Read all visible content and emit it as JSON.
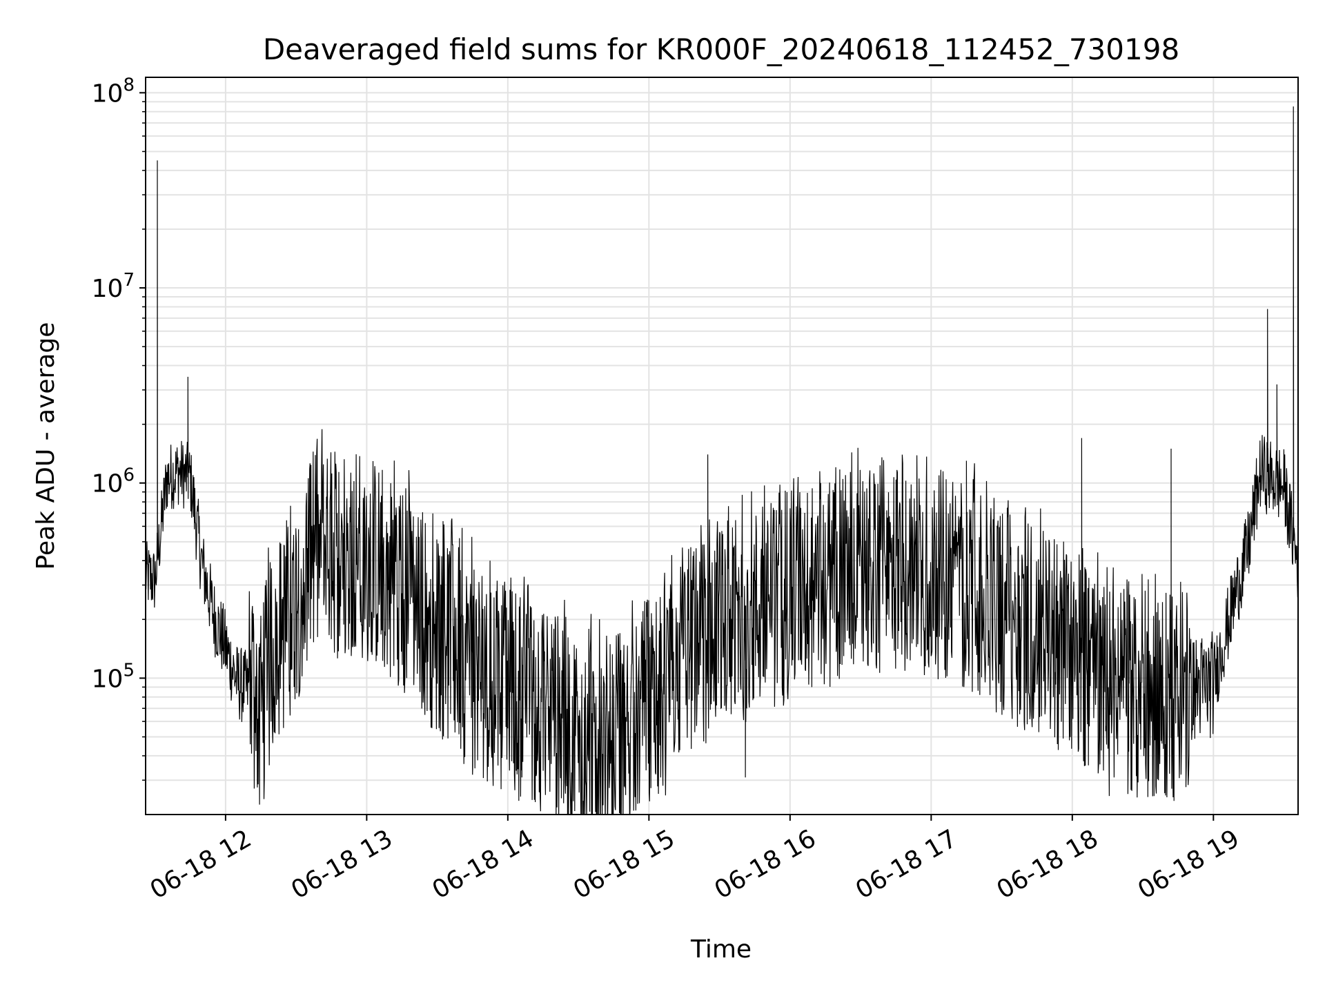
{
  "chart_data": {
    "type": "line",
    "title": "Deaveraged field sums for KR000F_20240618_112452_730198",
    "xlabel": "Time",
    "ylabel": "Peak ADU - average",
    "yscale": "log",
    "ylim": [
      20000,
      120000000
    ],
    "xlim": [
      "2024-06-18 11:26",
      "2024-06-18 19:36"
    ],
    "grid": true,
    "line_color": "#000000",
    "x_ticks": [
      {
        "time": "2024-06-18 12:00",
        "label": "06-18 12"
      },
      {
        "time": "2024-06-18 13:00",
        "label": "06-18 13"
      },
      {
        "time": "2024-06-18 14:00",
        "label": "06-18 14"
      },
      {
        "time": "2024-06-18 15:00",
        "label": "06-18 15"
      },
      {
        "time": "2024-06-18 16:00",
        "label": "06-18 16"
      },
      {
        "time": "2024-06-18 17:00",
        "label": "06-18 17"
      },
      {
        "time": "2024-06-18 18:00",
        "label": "06-18 18"
      },
      {
        "time": "2024-06-18 19:00",
        "label": "06-18 19"
      }
    ],
    "y_ticks": [
      {
        "value": 100000,
        "base": "10",
        "exp": "5"
      },
      {
        "value": 1000000,
        "base": "10",
        "exp": "6"
      },
      {
        "value": 10000000,
        "base": "10",
        "exp": "7"
      },
      {
        "value": 100000000,
        "base": "10",
        "exp": "8"
      }
    ],
    "series": [
      {
        "x": [
          "2024-06-18 11:26",
          "2024-06-18 11:30",
          "2024-06-18 11:35",
          "2024-06-18 11:40",
          "2024-06-18 11:45",
          "2024-06-18 11:50",
          "2024-06-18 11:55",
          "2024-06-18 12:00",
          "2024-06-18 12:05",
          "2024-06-18 12:10",
          "2024-06-18 12:15",
          "2024-06-18 12:20",
          "2024-06-18 12:30",
          "2024-06-18 12:40",
          "2024-06-18 12:50",
          "2024-06-18 13:00",
          "2024-06-18 13:10",
          "2024-06-18 13:20",
          "2024-06-18 13:30",
          "2024-06-18 13:40",
          "2024-06-18 13:50",
          "2024-06-18 14:00",
          "2024-06-18 14:15",
          "2024-06-18 14:30",
          "2024-06-18 14:45",
          "2024-06-18 15:00",
          "2024-06-18 15:15",
          "2024-06-18 15:30",
          "2024-06-18 15:45",
          "2024-06-18 16:00",
          "2024-06-18 16:15",
          "2024-06-18 16:30",
          "2024-06-18 16:45",
          "2024-06-18 17:00",
          "2024-06-18 17:15",
          "2024-06-18 17:30",
          "2024-06-18 17:45",
          "2024-06-18 18:00",
          "2024-06-18 18:15",
          "2024-06-18 18:30",
          "2024-06-18 18:45",
          "2024-06-18 19:00",
          "2024-06-18 19:10",
          "2024-06-18 19:15",
          "2024-06-18 19:20",
          "2024-06-18 19:25",
          "2024-06-18 19:30",
          "2024-06-18 19:36"
        ],
        "y": [
          350000,
          330000,
          1100000,
          1200000,
          1100000,
          400000,
          220000,
          150000,
          100000,
          90000,
          80000,
          150000,
          300000,
          500000,
          500000,
          450000,
          400000,
          300000,
          200000,
          150000,
          120000,
          100000,
          80000,
          60000,
          60000,
          70000,
          150000,
          200000,
          250000,
          300000,
          350000,
          400000,
          400000,
          400000,
          350000,
          250000,
          200000,
          150000,
          100000,
          90000,
          90000,
          100000,
          300000,
          500000,
          1200000,
          1100000,
          1000000,
          400000
        ],
        "spikes": [
          {
            "time": "2024-06-18 11:31",
            "value": 45000000
          },
          {
            "time": "2024-06-18 11:44",
            "value": 3500000
          },
          {
            "time": "2024-06-18 15:25",
            "value": 1400000
          },
          {
            "time": "2024-06-18 17:15",
            "value": 1300000
          },
          {
            "time": "2024-06-18 18:04",
            "value": 1700000
          },
          {
            "time": "2024-06-18 18:42",
            "value": 1500000
          },
          {
            "time": "2024-06-18 19:23",
            "value": 7800000
          },
          {
            "time": "2024-06-18 19:27",
            "value": 3200000
          },
          {
            "time": "2024-06-18 19:34",
            "value": 85000000
          }
        ],
        "lows": [
          {
            "time": "2024-06-18 13:45",
            "value": 32000
          },
          {
            "time": "2024-06-18 14:06",
            "value": 31000
          },
          {
            "time": "2024-06-18 14:50",
            "value": 35000
          },
          {
            "time": "2024-06-18 15:41",
            "value": 31000
          },
          {
            "time": "2024-06-18 18:24",
            "value": 42000
          }
        ]
      }
    ]
  }
}
